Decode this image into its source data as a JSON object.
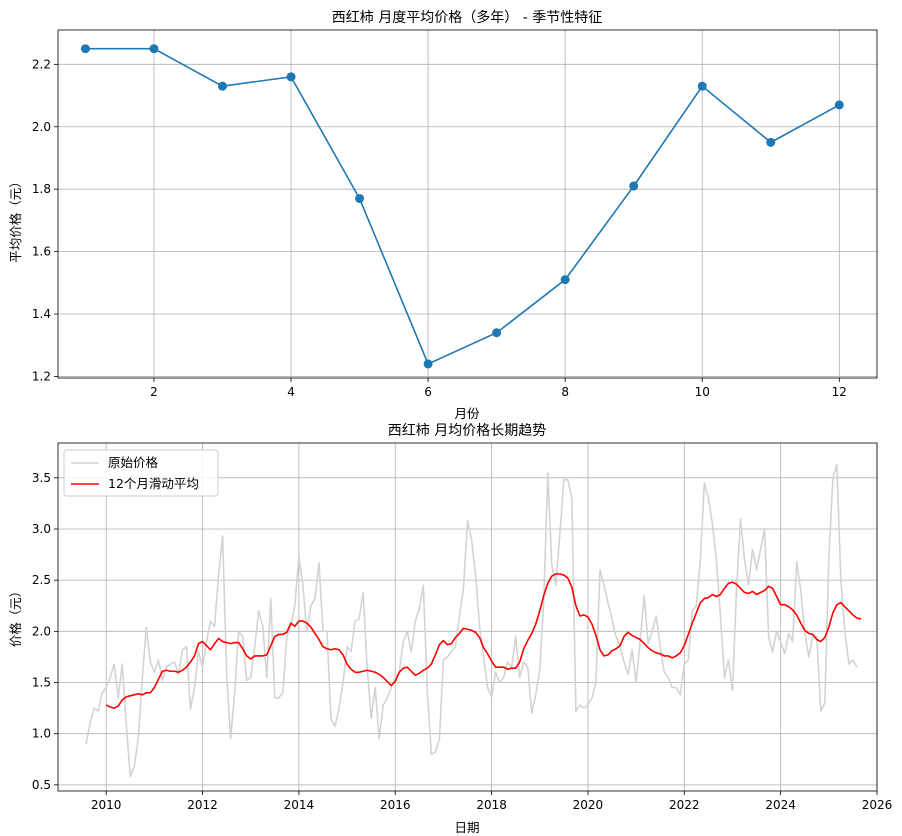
{
  "chart_data": [
    {
      "type": "line",
      "title": "西红柿 月度平均价格（多年） - 季节性特征",
      "xlabel": "月份",
      "ylabel": "平均价格（元）",
      "x": [
        1,
        2,
        3,
        4,
        5,
        6,
        7,
        8,
        9,
        10,
        11,
        12
      ],
      "series": [
        {
          "values": [
            2.25,
            2.25,
            2.13,
            2.16,
            1.77,
            1.24,
            1.34,
            1.51,
            1.81,
            2.13,
            1.95,
            2.07
          ],
          "color": "#1f77b4",
          "marker": "circle"
        }
      ],
      "xlim": [
        0.6,
        12.55
      ],
      "ylim": [
        1.195,
        2.31
      ],
      "xticks": [
        2,
        4,
        6,
        8,
        10,
        12
      ],
      "xtick_labels": [
        "2",
        "4",
        "6",
        "8",
        "10",
        "12"
      ],
      "yticks": [
        1.2,
        1.4,
        1.6,
        1.8,
        2.0,
        2.2
      ],
      "ytick_labels": [
        "1.2",
        "1.4",
        "1.6",
        "1.8",
        "2.0",
        "2.2"
      ],
      "grid": true
    },
    {
      "type": "line",
      "title": "西红柿 月均价格长期趋势",
      "xlabel": "日期",
      "ylabel": "价格（元）",
      "legend_position": "top-left",
      "x_axis": "date",
      "xlim": [
        "2009-01",
        "2026-01"
      ],
      "ylim": [
        0.44,
        3.84
      ],
      "xticks": [
        "2010-01",
        "2012-01",
        "2014-01",
        "2016-01",
        "2018-01",
        "2020-01",
        "2022-01",
        "2024-01",
        "2026-01"
      ],
      "xtick_labels": [
        "2010",
        "2012",
        "2014",
        "2016",
        "2018",
        "2020",
        "2022",
        "2024",
        "2026"
      ],
      "yticks": [
        0.5,
        1.0,
        1.5,
        2.0,
        2.5,
        3.0,
        3.5
      ],
      "ytick_labels": [
        "0.5",
        "1.0",
        "1.5",
        "2.0",
        "2.5",
        "3.0",
        "3.5"
      ],
      "grid": true,
      "series": [
        {
          "name": "原始价格",
          "color": "#d3d3d3",
          "start": "2009-08",
          "values": [
            0.9,
            1.1,
            1.25,
            1.22,
            1.4,
            1.45,
            1.55,
            1.68,
            1.35,
            1.68,
            1.1,
            0.58,
            0.68,
            0.95,
            1.55,
            2.04,
            1.7,
            1.6,
            1.72,
            1.52,
            1.65,
            1.68,
            1.7,
            1.58,
            1.82,
            1.85,
            1.24,
            1.45,
            1.8,
            1.65,
            1.9,
            2.1,
            2.05,
            2.55,
            2.93,
            1.6,
            0.95,
            1.4,
            2.0,
            1.95,
            1.52,
            1.55,
            1.85,
            2.2,
            2.05,
            1.55,
            2.32,
            1.35,
            1.35,
            1.4,
            1.95,
            2.05,
            2.25,
            2.73,
            2.45,
            2.0,
            2.25,
            2.32,
            2.67,
            2.0,
            2.0,
            1.15,
            1.07,
            1.25,
            1.5,
            1.85,
            1.8,
            2.1,
            2.12,
            2.38,
            1.65,
            1.15,
            1.45,
            0.95,
            1.28,
            1.35,
            1.45,
            1.55,
            1.6,
            1.9,
            2.0,
            1.8,
            2.1,
            2.22,
            2.45,
            1.4,
            0.8,
            0.82,
            0.95,
            1.72,
            1.75,
            1.8,
            1.85,
            2.15,
            2.42,
            3.08,
            2.9,
            2.55,
            2.05,
            1.75,
            1.45,
            1.36,
            1.6,
            1.5,
            1.55,
            1.7,
            1.65,
            1.95,
            1.55,
            1.7,
            1.65,
            1.2,
            1.38,
            1.62,
            2.3,
            3.55,
            2.65,
            2.45,
            2.95,
            3.48,
            3.48,
            3.3,
            1.22,
            1.28,
            1.25,
            1.28,
            1.35,
            1.5,
            2.6,
            2.45,
            2.28,
            2.12,
            1.95,
            1.85,
            1.7,
            1.58,
            1.82,
            1.5,
            1.9,
            2.35,
            1.88,
            2.0,
            2.15,
            1.85,
            1.6,
            1.55,
            1.45,
            1.45,
            1.38,
            1.68,
            1.72,
            2.2,
            2.25,
            2.7,
            3.45,
            3.3,
            3.05,
            2.7,
            2.15,
            1.55,
            1.72,
            1.42,
            2.4,
            3.1,
            2.7,
            2.45,
            2.8,
            2.6,
            2.8,
            3.0,
            1.95,
            1.8,
            2.0,
            1.9,
            1.78,
            1.98,
            1.9,
            2.68,
            2.4,
            2.0,
            1.75,
            1.95,
            1.95,
            1.22,
            1.3,
            2.7,
            3.5,
            3.63,
            2.5,
            2.0,
            1.68,
            1.72,
            1.65
          ]
        },
        {
          "name": "12个月滑动平均",
          "color": "#ff0000",
          "start": "2010-01",
          "values": [
            1.28,
            1.26,
            1.25,
            1.27,
            1.33,
            1.36,
            1.37,
            1.38,
            1.39,
            1.38,
            1.4,
            1.4,
            1.45,
            1.53,
            1.61,
            1.62,
            1.61,
            1.61,
            1.6,
            1.62,
            1.65,
            1.7,
            1.76,
            1.88,
            1.9,
            1.86,
            1.82,
            1.88,
            1.93,
            1.9,
            1.89,
            1.88,
            1.89,
            1.89,
            1.83,
            1.76,
            1.73,
            1.76,
            1.76,
            1.76,
            1.77,
            1.86,
            1.95,
            1.97,
            1.97,
            1.99,
            2.08,
            2.05,
            2.1,
            2.1,
            2.08,
            2.04,
            1.98,
            1.92,
            1.85,
            1.83,
            1.82,
            1.83,
            1.82,
            1.77,
            1.68,
            1.63,
            1.6,
            1.6,
            1.61,
            1.62,
            1.61,
            1.6,
            1.58,
            1.55,
            1.51,
            1.47,
            1.51,
            1.6,
            1.64,
            1.65,
            1.61,
            1.57,
            1.59,
            1.62,
            1.64,
            1.68,
            1.77,
            1.87,
            1.91,
            1.87,
            1.88,
            1.94,
            1.98,
            2.03,
            2.02,
            2.01,
            1.99,
            1.94,
            1.84,
            1.78,
            1.71,
            1.65,
            1.65,
            1.65,
            1.63,
            1.64,
            1.64,
            1.7,
            1.83,
            1.91,
            1.98,
            2.07,
            2.2,
            2.35,
            2.47,
            2.54,
            2.56,
            2.56,
            2.55,
            2.52,
            2.43,
            2.25,
            2.15,
            2.16,
            2.14,
            2.07,
            1.96,
            1.82,
            1.76,
            1.77,
            1.81,
            1.83,
            1.86,
            1.95,
            1.99,
            1.96,
            1.94,
            1.92,
            1.88,
            1.84,
            1.81,
            1.79,
            1.78,
            1.76,
            1.76,
            1.74,
            1.76,
            1.79,
            1.86,
            1.97,
            2.08,
            2.18,
            2.28,
            2.32,
            2.33,
            2.36,
            2.34,
            2.36,
            2.42,
            2.47,
            2.48,
            2.46,
            2.42,
            2.38,
            2.37,
            2.39,
            2.36,
            2.38,
            2.4,
            2.44,
            2.42,
            2.34,
            2.26,
            2.26,
            2.24,
            2.21,
            2.16,
            2.08,
            2.01,
            1.98,
            1.97,
            1.92,
            1.9,
            1.94,
            2.04,
            2.18,
            2.26,
            2.28,
            2.24,
            2.2,
            2.16,
            2.13,
            2.12
          ]
        }
      ]
    }
  ]
}
